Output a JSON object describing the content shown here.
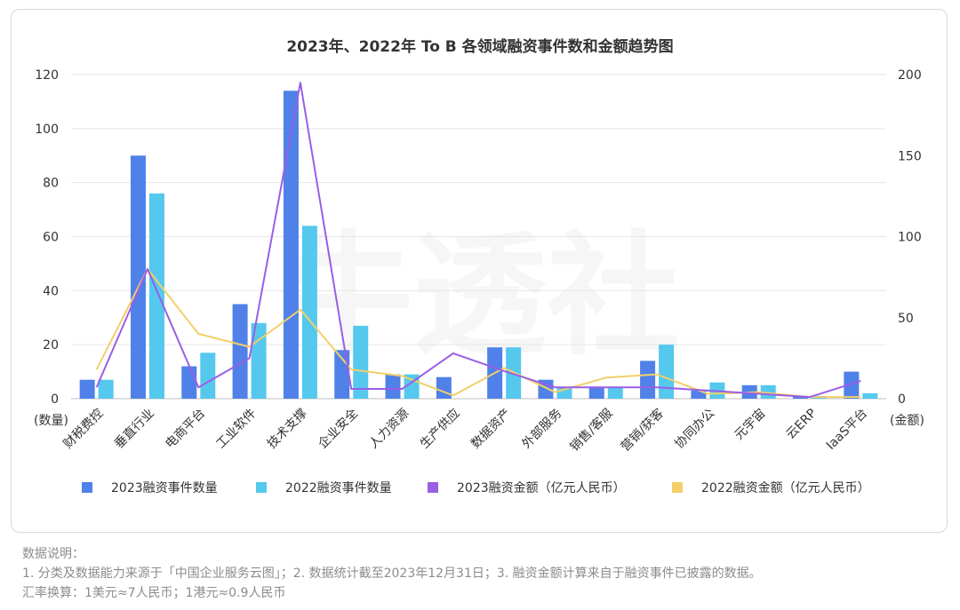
{
  "chart_data": {
    "type": "bar",
    "title": "2023年、2022年 To B 各领域融资事件数和金额趋势图",
    "categories": [
      "财税费控",
      "垂直行业",
      "电商平台",
      "工业软件",
      "技术支撑",
      "企业安全",
      "人力资源",
      "生产供应",
      "数据资产",
      "外部服务",
      "销售/客服",
      "营销/获客",
      "协同办公",
      "元宇宙",
      "云ERP",
      "IaaS平台"
    ],
    "y_left": {
      "label": "(数量)",
      "range": [
        0,
        120
      ],
      "ticks": [
        0,
        20,
        40,
        60,
        80,
        100,
        120
      ]
    },
    "y_right": {
      "label": "(金额)",
      "range": [
        0,
        200
      ],
      "ticks": [
        0,
        50,
        100,
        150,
        200
      ]
    },
    "grid": true,
    "legend_position": "bottom",
    "series": [
      {
        "name": "2023融资事件数量",
        "kind": "bar",
        "axis": "left",
        "color": "#4f81e8",
        "values": [
          7,
          90,
          12,
          35,
          114,
          18,
          9,
          8,
          19,
          7,
          4,
          14,
          3,
          5,
          1,
          10
        ]
      },
      {
        "name": "2022融资事件数量",
        "kind": "bar",
        "axis": "left",
        "color": "#55c8ee",
        "values": [
          7,
          76,
          17,
          28,
          64,
          27,
          9,
          0,
          19,
          4,
          4,
          20,
          6,
          5,
          1,
          2
        ]
      },
      {
        "name": "2023融资金额（亿元人民币）",
        "kind": "line",
        "axis": "right",
        "color": "#9a5ee6",
        "values": [
          7,
          80,
          7,
          25,
          195,
          6,
          6,
          28,
          17,
          7,
          7,
          7,
          5,
          3,
          1,
          11
        ]
      },
      {
        "name": "2022融资金额（亿元人民币）",
        "kind": "line",
        "axis": "right",
        "color": "#f2cf6b",
        "values": [
          18,
          80,
          40,
          32,
          55,
          18,
          14,
          2,
          19,
          4,
          13,
          15,
          3,
          4,
          1,
          1
        ]
      }
    ]
  },
  "watermark": "牛透社",
  "notes": {
    "heading": "数据说明：",
    "line1": "1. 分类及数据能力来源于「中国企业服务云图」；2. 数据统计截至2023年12月31日；3. 融资金额计算来自于融资事件已披露的数据。",
    "line2": "汇率换算：1美元≈7人民币；1港元≈0.9人民币"
  }
}
